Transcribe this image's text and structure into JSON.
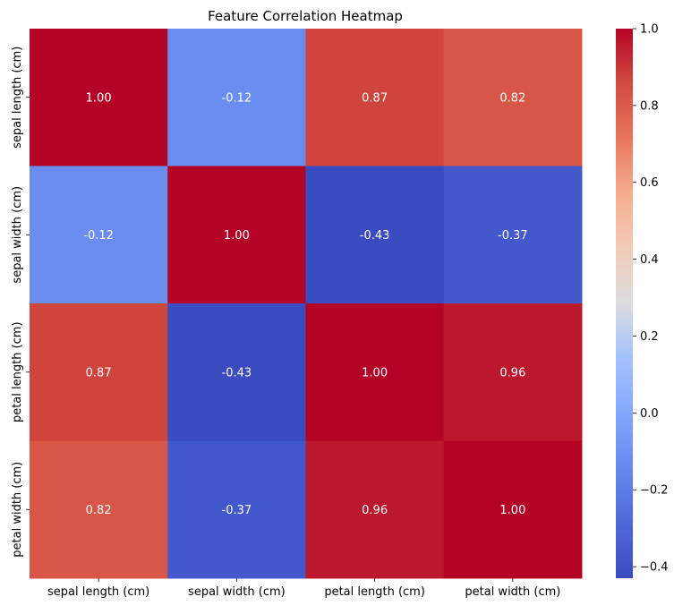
{
  "chart_data": {
    "type": "heatmap",
    "title": "Feature Correlation Heatmap",
    "colormap": "coolwarm",
    "x_labels": [
      "sepal length (cm)",
      "sepal width (cm)",
      "petal length (cm)",
      "petal width (cm)"
    ],
    "y_labels": [
      "sepal length (cm)",
      "sepal width (cm)",
      "petal length (cm)",
      "petal width (cm)"
    ],
    "values": [
      [
        1.0,
        -0.12,
        0.87,
        0.82
      ],
      [
        -0.12,
        1.0,
        -0.43,
        -0.37
      ],
      [
        0.87,
        -0.43,
        1.0,
        0.96
      ],
      [
        0.82,
        -0.37,
        0.96,
        1.0
      ]
    ],
    "annotations": [
      [
        "1.00",
        "-0.12",
        "0.87",
        "0.82"
      ],
      [
        "-0.12",
        "1.00",
        "-0.43",
        "-0.37"
      ],
      [
        "0.87",
        "-0.43",
        "1.00",
        "0.96"
      ],
      [
        "0.82",
        "-0.37",
        "0.96",
        "1.00"
      ]
    ],
    "colorbar": {
      "range": [
        -0.43,
        1.0
      ],
      "ticks": [
        1.0,
        0.8,
        0.6,
        0.4,
        0.2,
        0.0,
        -0.2,
        -0.4
      ],
      "tick_labels": [
        "1.0",
        "0.8",
        "0.6",
        "0.4",
        "0.2",
        "0.0",
        "−0.2",
        "−0.4"
      ]
    }
  }
}
